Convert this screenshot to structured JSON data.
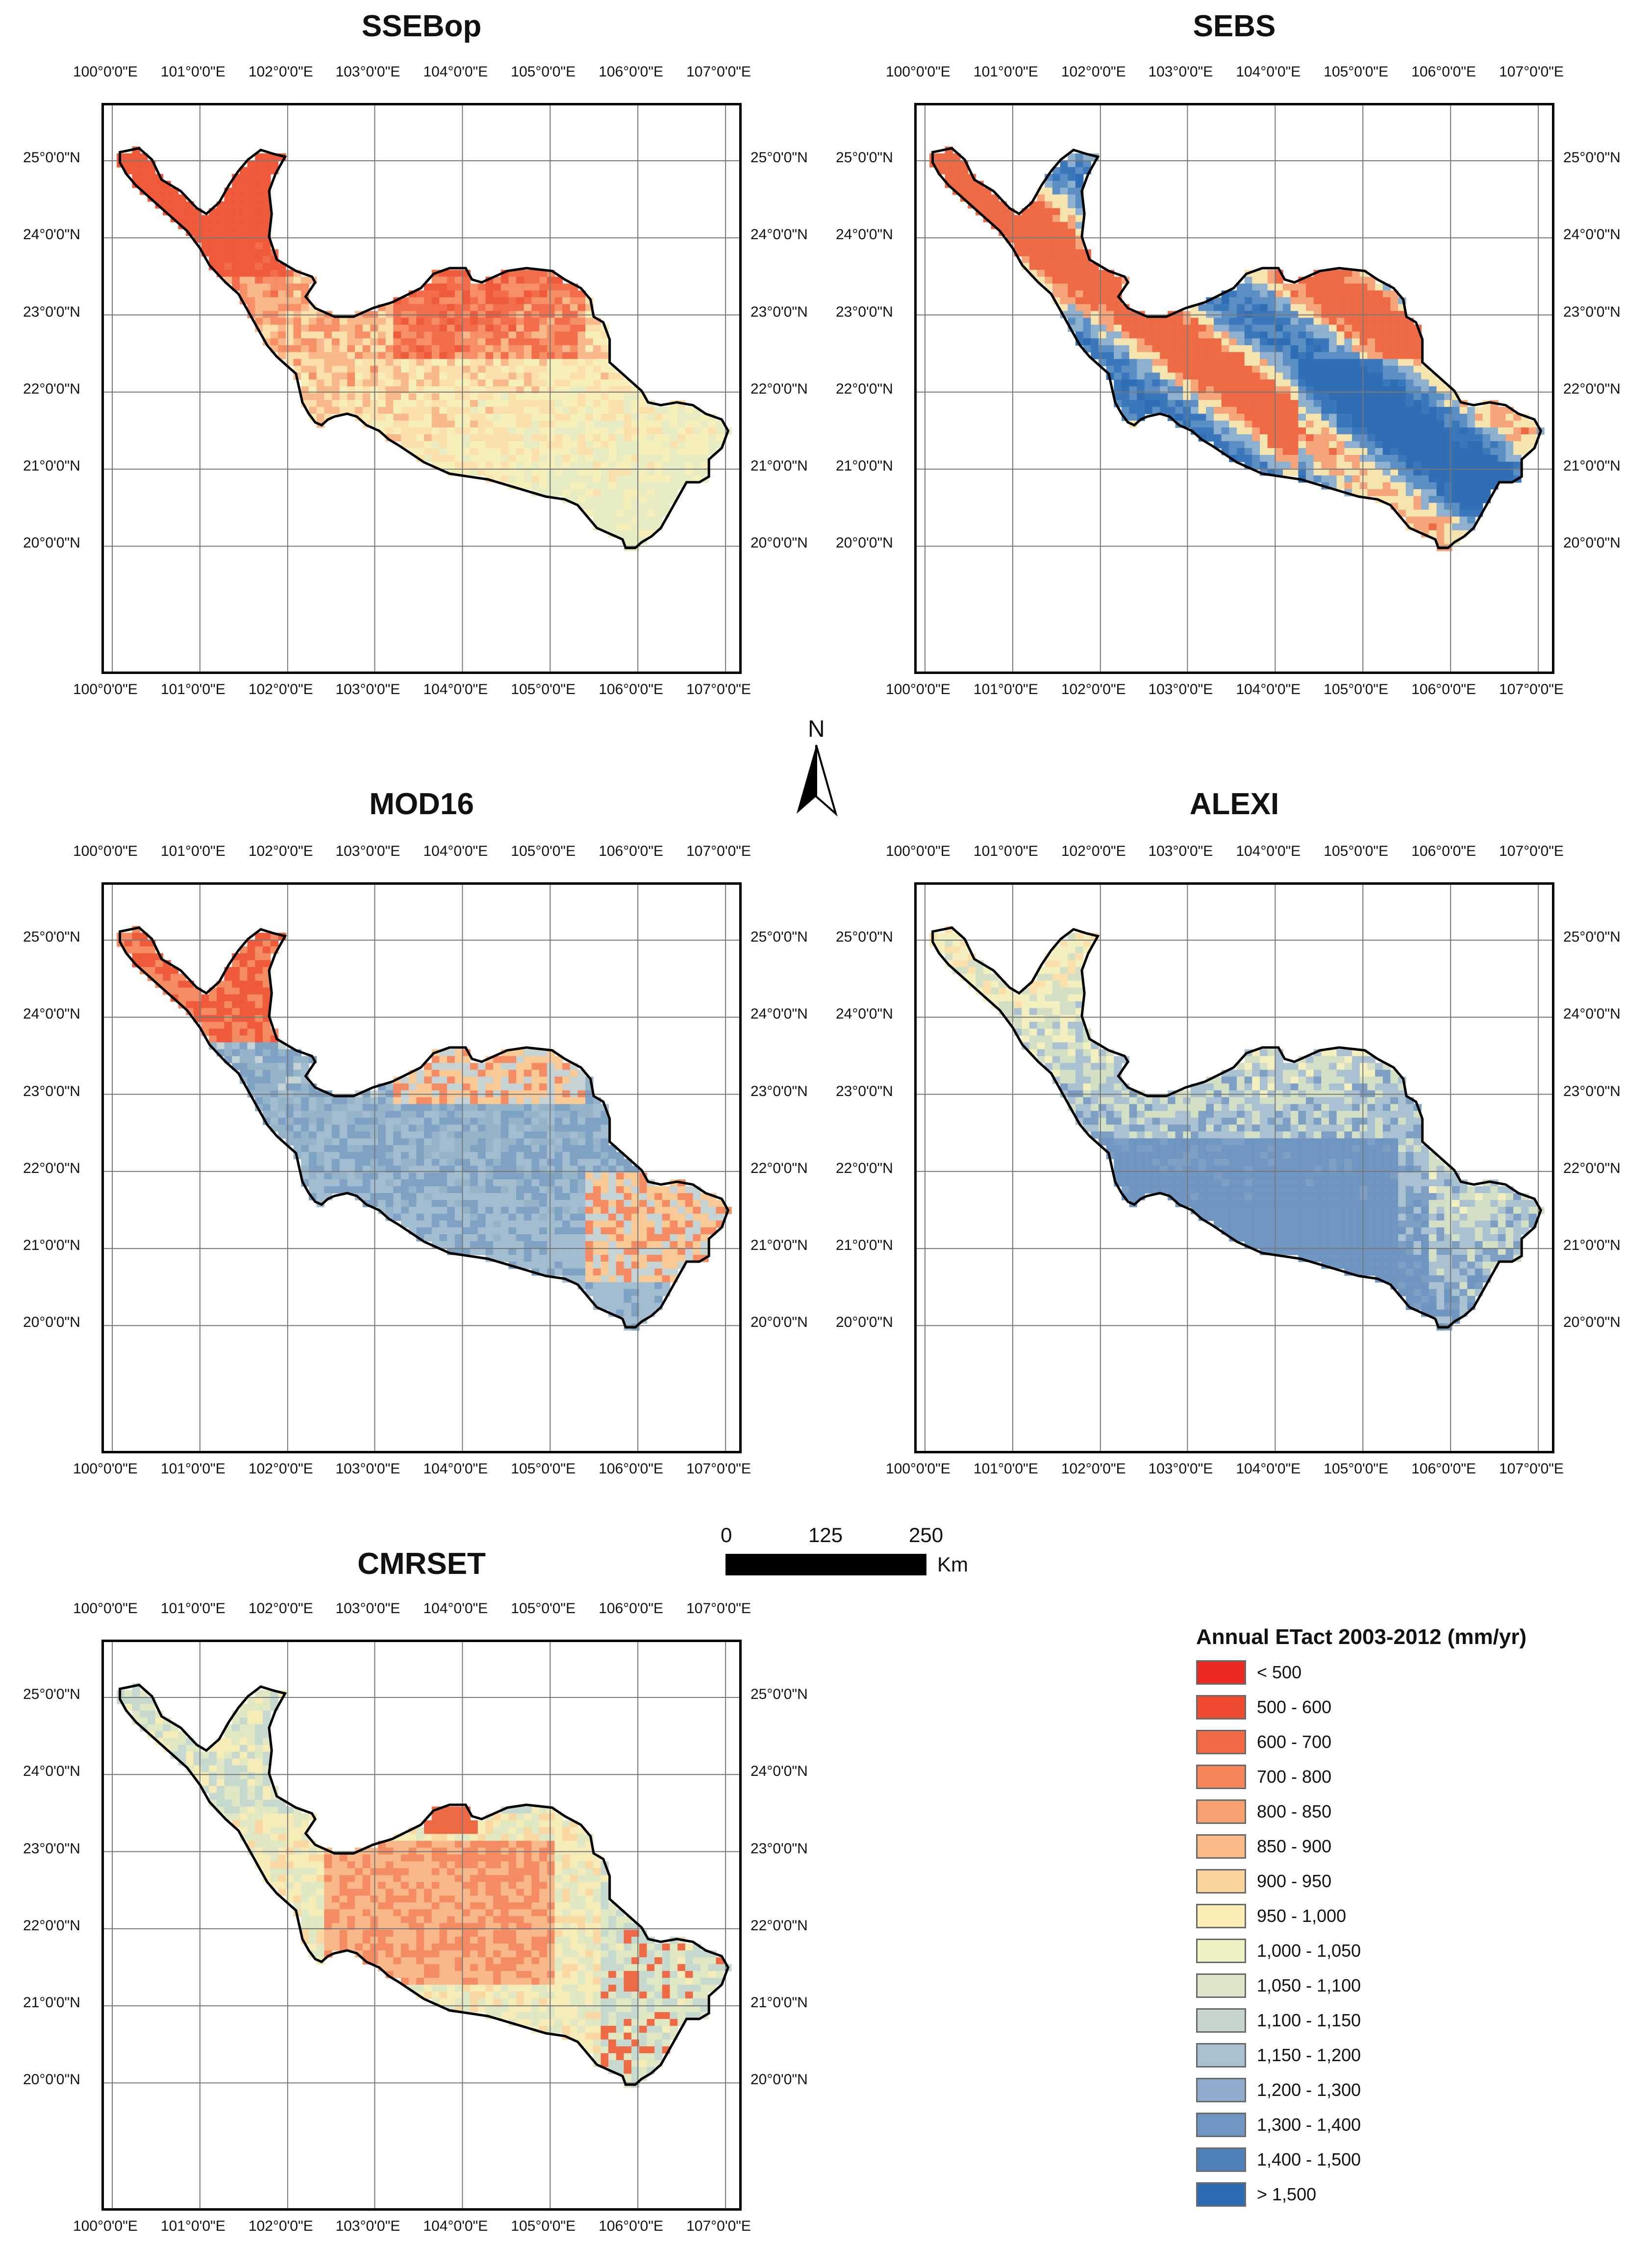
{
  "panels": [
    {
      "id": "ssebop",
      "title": "SSEBop",
      "scheme": [
        "#ef5a3a",
        "#f26d49",
        "#f68f65",
        "#f9b88a",
        "#fbe0ab",
        "#f7efb9",
        "#e8ecc2"
      ]
    },
    {
      "id": "sebs",
      "title": "SEBS",
      "scheme": [
        "#2f6db4",
        "#3a78bb",
        "#5b8fc4",
        "#8eb0cf",
        "#f6e4ae",
        "#f6a47a",
        "#ee6a44"
      ]
    },
    {
      "id": "mod16",
      "title": "MOD16",
      "scheme": [
        "#ef5a3a",
        "#f58b63",
        "#f9c996",
        "#c6d3d5",
        "#95b3c9",
        "#7fa2c4",
        "#a2bcd0"
      ]
    },
    {
      "id": "alexi",
      "title": "ALEXI",
      "scheme": [
        "#f7ba8c",
        "#fbe0ab",
        "#f3efbf",
        "#d4e0c6",
        "#a9c1d0",
        "#7e9fc4",
        "#6f95c1"
      ]
    },
    {
      "id": "cmrset",
      "title": "CMRSET",
      "scheme": [
        "#f58b63",
        "#f9b88a",
        "#fbd7a2",
        "#f6ecb8",
        "#dfe7c3",
        "#c6d9cf",
        "#ee6a44"
      ]
    }
  ],
  "axes": {
    "lon_labels": [
      "100°0'0\"E",
      "101°0'0\"E",
      "102°0'0\"E",
      "103°0'0\"E",
      "104°0'0\"E",
      "105°0'0\"E",
      "106°0'0\"E",
      "107°0'0\"E"
    ],
    "lat_labels": [
      "25°0'0\"N",
      "24°0'0\"N",
      "23°0'0\"N",
      "22°0'0\"N",
      "21°0'0\"N",
      "20°0'0\"N"
    ]
  },
  "north_arrow": {
    "label": "N"
  },
  "scale_bar": {
    "ticks": [
      "0",
      "125",
      "250"
    ],
    "unit": "Km"
  },
  "legend": {
    "title": "Annual ETact 2003-2012 (mm/yr)",
    "classes": [
      {
        "label": "< 500",
        "color": "#ea2a22"
      },
      {
        "label": "500 - 600",
        "color": "#ef4b31"
      },
      {
        "label": "600 - 700",
        "color": "#f26a45"
      },
      {
        "label": "700 - 800",
        "color": "#f5865a"
      },
      {
        "label": "800 - 850",
        "color": "#f8a170"
      },
      {
        "label": "850 - 900",
        "color": "#fabb86"
      },
      {
        "label": "900 - 950",
        "color": "#fcd59e"
      },
      {
        "label": "950 - 1,000",
        "color": "#fbefb6"
      },
      {
        "label": "1,000 - 1,050",
        "color": "#f1f2c4"
      },
      {
        "label": "1,050 - 1,100",
        "color": "#dde6c8"
      },
      {
        "label": "1,100 - 1,150",
        "color": "#c6d6cc"
      },
      {
        "label": "1,150 - 1,200",
        "color": "#a9c1cf"
      },
      {
        "label": "1,200 - 1,300",
        "color": "#8eabcc"
      },
      {
        "label": "1,300 - 1,400",
        "color": "#6f95c3"
      },
      {
        "label": "1,400 - 1,500",
        "color": "#4f80ba"
      },
      {
        "label": "> 1,500",
        "color": "#2c6cb2"
      }
    ]
  }
}
